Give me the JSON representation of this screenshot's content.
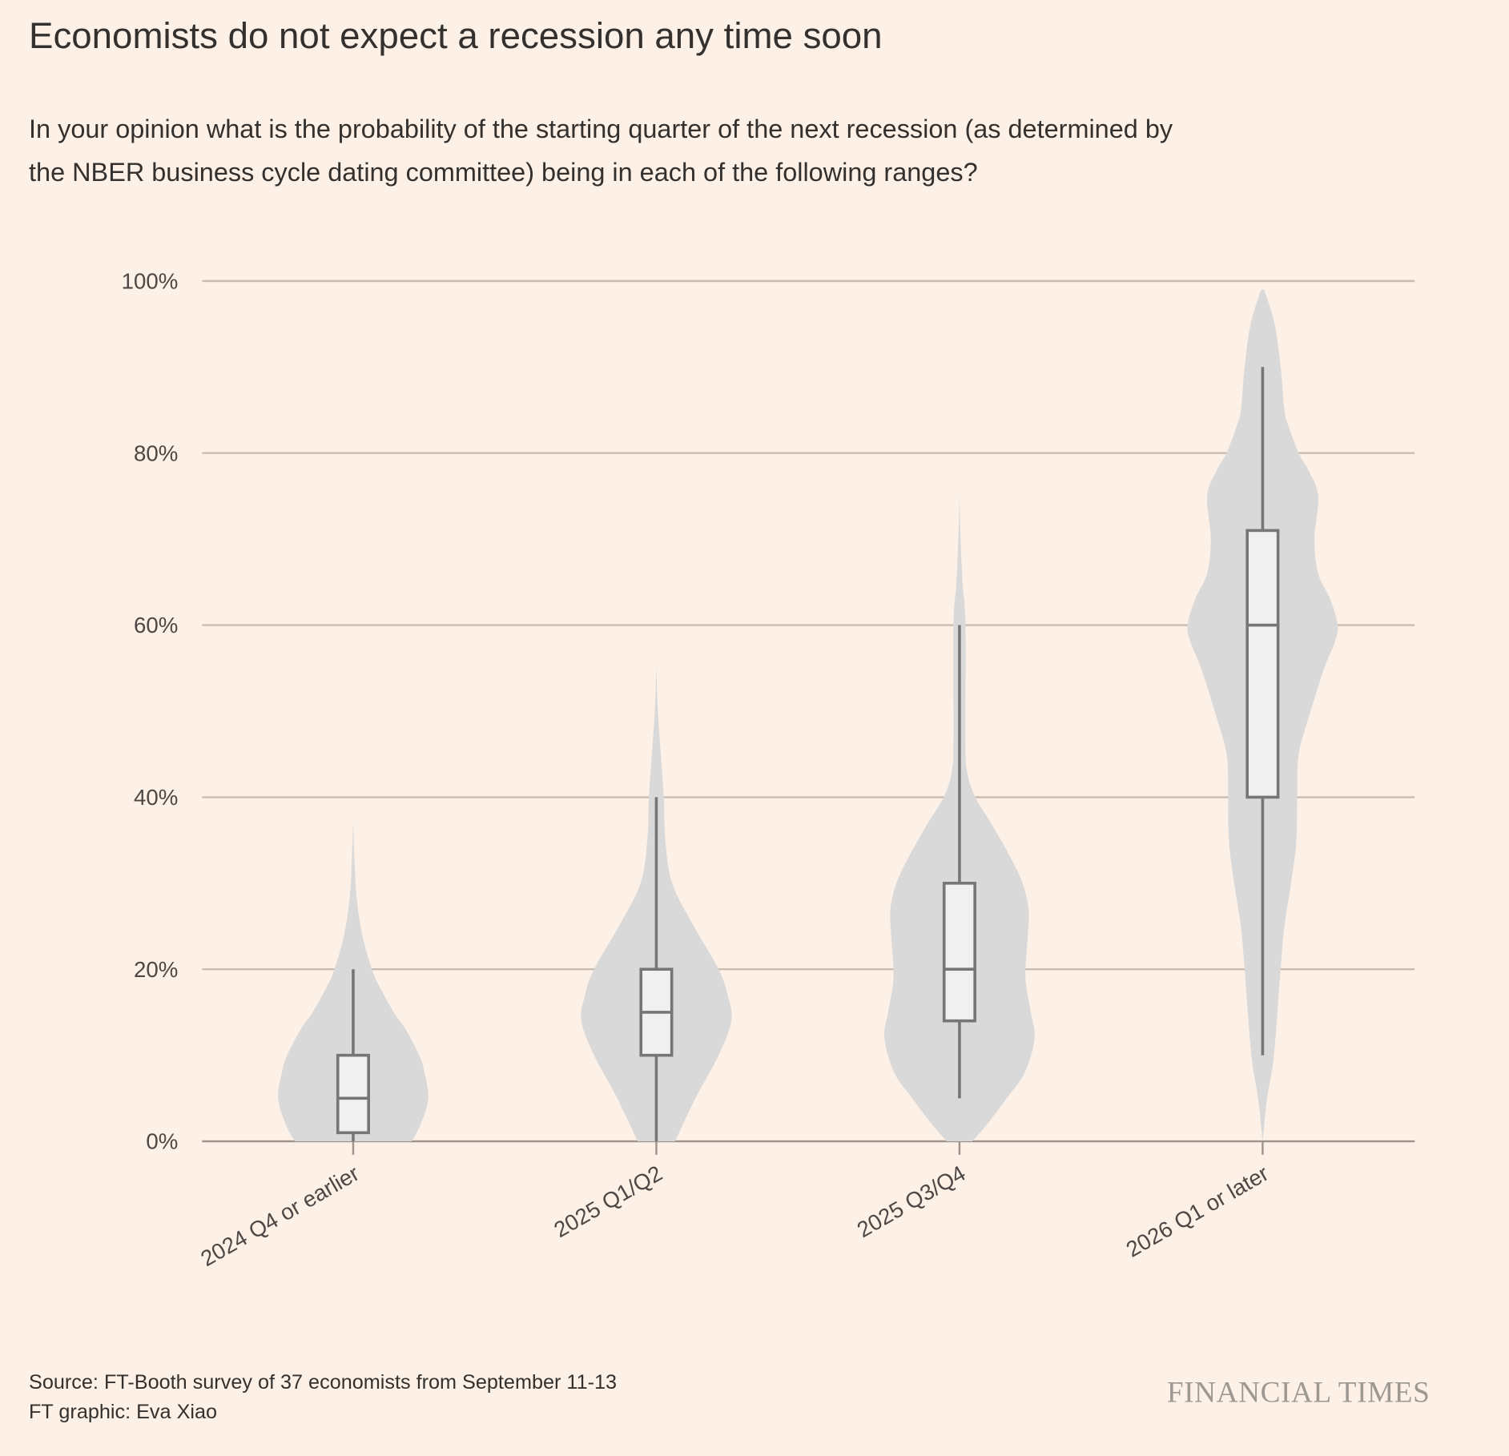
{
  "title": "Economists do not expect a recession any time soon",
  "subtitle_lines": [
    "In your opinion what is the probability of the starting quarter of the next recession (as determined by",
    "the NBER business cycle dating committee) being in each of the following ranges?"
  ],
  "footer": {
    "source": "Source: FT-Booth survey of 37 economists from September 11-13",
    "credit": "FT graphic: Eva Xiao",
    "logo": "FINANCIAL TIMES"
  },
  "colors": {
    "background": "#fdf0e6",
    "violin": "#d9d9d9",
    "box_fill": "#f0f0f0",
    "box_stroke": "#767676",
    "grid": "#c9bdb2",
    "axis": "#9e928a"
  },
  "chart_data": {
    "type": "violin",
    "title": "Economists do not expect a recession any time soon",
    "xlabel": "",
    "ylabel": "",
    "ylim": [
      0,
      100
    ],
    "yticks": [
      0,
      20,
      40,
      60,
      80,
      100
    ],
    "ytick_labels": [
      "0%",
      "20%",
      "40%",
      "60%",
      "80%",
      "100%"
    ],
    "grid": true,
    "categories": [
      "2024 Q4 or earlier",
      "2025 Q1/Q2",
      "2025 Q3/Q4",
      "2026 Q1 or later"
    ],
    "series": [
      {
        "name": "2024 Q4 or earlier",
        "box": {
          "min": 0,
          "q1": 1,
          "median": 5,
          "q3": 10,
          "max": 20
        },
        "density": [
          [
            0,
            0.78
          ],
          [
            2,
            0.9
          ],
          [
            5,
            1
          ],
          [
            8,
            0.95
          ],
          [
            10,
            0.88
          ],
          [
            13,
            0.7
          ],
          [
            15,
            0.54
          ],
          [
            18,
            0.35
          ],
          [
            20,
            0.25
          ],
          [
            24,
            0.12
          ],
          [
            28,
            0.05
          ],
          [
            32,
            0.02
          ],
          [
            37,
            0
          ]
        ]
      },
      {
        "name": "2025 Q1/Q2",
        "box": {
          "min": 0,
          "q1": 10,
          "median": 15,
          "q3": 20,
          "max": 40
        },
        "density": [
          [
            0,
            0.25
          ],
          [
            5,
            0.52
          ],
          [
            10,
            0.83
          ],
          [
            14,
            1
          ],
          [
            17,
            0.95
          ],
          [
            20,
            0.83
          ],
          [
            25,
            0.5
          ],
          [
            30,
            0.21
          ],
          [
            35,
            0.12
          ],
          [
            40,
            0.1
          ],
          [
            45,
            0.06
          ],
          [
            50,
            0.02
          ],
          [
            55,
            0
          ]
        ]
      },
      {
        "name": "2025 Q3/Q4",
        "box": {
          "min": 5,
          "q1": 14,
          "median": 20,
          "q3": 30,
          "max": 60
        },
        "density": [
          [
            0,
            0.17
          ],
          [
            2,
            0.37
          ],
          [
            5,
            0.63
          ],
          [
            8,
            0.87
          ],
          [
            12,
            1
          ],
          [
            15,
            0.95
          ],
          [
            18,
            0.89
          ],
          [
            20,
            0.88
          ],
          [
            24,
            0.91
          ],
          [
            27,
            0.92
          ],
          [
            30,
            0.84
          ],
          [
            33,
            0.68
          ],
          [
            37,
            0.42
          ],
          [
            40,
            0.21
          ],
          [
            43,
            0.1
          ],
          [
            47,
            0.08
          ],
          [
            60,
            0.08
          ],
          [
            65,
            0.04
          ],
          [
            70,
            0.015
          ],
          [
            75,
            0
          ]
        ]
      },
      {
        "name": "2026 Q1 or later",
        "box": {
          "min": 10,
          "q1": 40,
          "median": 60,
          "q3": 71,
          "max": 90
        },
        "density": [
          [
            0,
            0
          ],
          [
            5,
            0.06
          ],
          [
            10,
            0.15
          ],
          [
            20,
            0.24
          ],
          [
            25,
            0.29
          ],
          [
            30,
            0.38
          ],
          [
            35,
            0.45
          ],
          [
            40,
            0.46
          ],
          [
            45,
            0.48
          ],
          [
            50,
            0.64
          ],
          [
            55,
            0.82
          ],
          [
            58,
            0.96
          ],
          [
            60,
            1
          ],
          [
            63,
            0.9
          ],
          [
            66,
            0.74
          ],
          [
            70,
            0.69
          ],
          [
            75,
            0.74
          ],
          [
            78,
            0.61
          ],
          [
            80,
            0.48
          ],
          [
            83,
            0.35
          ],
          [
            85,
            0.29
          ],
          [
            90,
            0.24
          ],
          [
            95,
            0.16
          ],
          [
            99,
            0.02
          ]
        ]
      }
    ]
  }
}
